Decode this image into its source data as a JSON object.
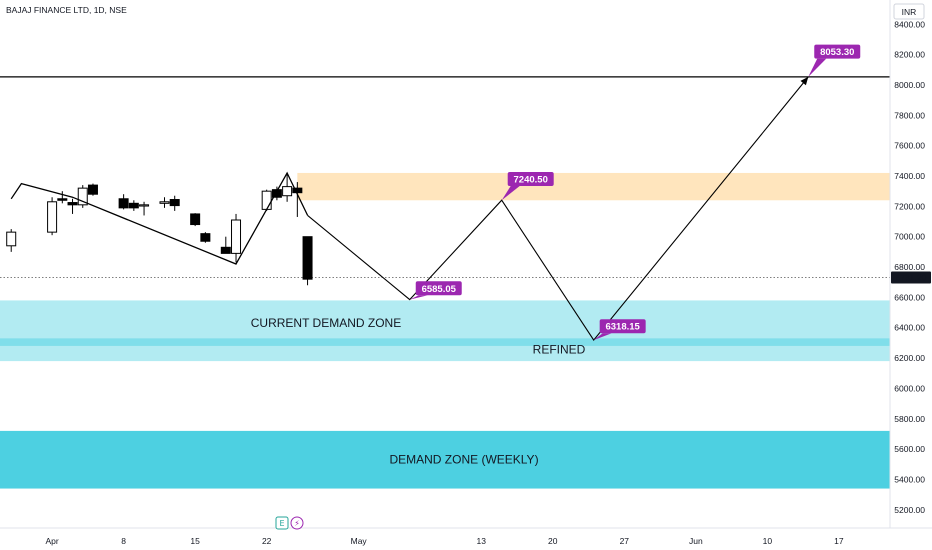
{
  "header": {
    "symbol_title": "BAJAJ FINANCE LTD, 1D, NSE",
    "currency": "INR"
  },
  "colors": {
    "callout": "#9c27b0",
    "supply_zone": "#ffe0b2",
    "demand_zone_light": "#b2ebf2",
    "demand_zone_refined": "#80deea",
    "demand_zone_weekly": "#4dd0e1",
    "candle_up": "#ffffff",
    "candle_down": "#000000",
    "current_price_bg": "#131722"
  },
  "bottom_icons": [
    {
      "icon": "earnings-icon",
      "glyph": "E"
    },
    {
      "icon": "dividend-icon",
      "glyph": "⚡"
    }
  ],
  "chart_data": {
    "type": "candlestick",
    "title": "BAJAJ FINANCE LTD, 1D, NSE",
    "x_ticks": [
      "Apr",
      "8",
      "15",
      "22",
      "May",
      "13",
      "20",
      "27",
      "Jun",
      "10",
      "17"
    ],
    "y_ticks": [
      "8400.00",
      "8200.00",
      "8000.00",
      "7800.00",
      "7600.00",
      "7400.00",
      "7200.00",
      "7000.00",
      "6800.00",
      "6600.00",
      "6400.00",
      "6200.00",
      "6000.00",
      "5800.00",
      "5600.00",
      "5400.00",
      "5200.00"
    ],
    "ylim": [
      5080,
      8560
    ],
    "current_price": {
      "label": "6731.20",
      "value": 6731.2
    },
    "resistance_line": 8053.3,
    "candles": [
      {
        "date": "2024-03-28",
        "open": 6940,
        "high": 7050,
        "low": 6900,
        "close": 7030
      },
      {
        "date": "2024-04-01",
        "open": 7030,
        "high": 7260,
        "low": 7010,
        "close": 7230
      },
      {
        "date": "2024-04-02",
        "open": 7250,
        "high": 7300,
        "low": 7220,
        "close": 7240
      },
      {
        "date": "2024-04-03",
        "open": 7225,
        "high": 7250,
        "low": 7150,
        "close": 7210
      },
      {
        "date": "2024-04-04",
        "open": 7210,
        "high": 7340,
        "low": 7190,
        "close": 7320
      },
      {
        "date": "2024-04-05",
        "open": 7340,
        "high": 7350,
        "low": 7270,
        "close": 7280
      },
      {
        "date": "2024-04-08",
        "open": 7250,
        "high": 7280,
        "low": 7180,
        "close": 7190
      },
      {
        "date": "2024-04-09",
        "open": 7220,
        "high": 7240,
        "low": 7170,
        "close": 7190
      },
      {
        "date": "2024-04-10",
        "open": 7205,
        "high": 7230,
        "low": 7140,
        "close": 7210
      },
      {
        "date": "2024-04-12",
        "open": 7220,
        "high": 7260,
        "low": 7190,
        "close": 7230
      },
      {
        "date": "2024-04-13",
        "open": 7245,
        "high": 7270,
        "low": 7170,
        "close": 7205
      },
      {
        "date": "2024-04-15",
        "open": 7150,
        "high": 7155,
        "low": 7070,
        "close": 7080
      },
      {
        "date": "2024-04-16",
        "open": 7020,
        "high": 7030,
        "low": 6960,
        "close": 6970
      },
      {
        "date": "2024-04-18",
        "open": 6930,
        "high": 7000,
        "low": 6890,
        "close": 6890
      },
      {
        "date": "2024-04-19",
        "open": 6890,
        "high": 7150,
        "low": 6830,
        "close": 7110
      },
      {
        "date": "2024-04-22",
        "open": 7180,
        "high": 7310,
        "low": 7170,
        "close": 7300
      },
      {
        "date": "2024-04-23",
        "open": 7310,
        "high": 7330,
        "low": 7240,
        "close": 7260
      },
      {
        "date": "2024-04-24",
        "open": 7270,
        "high": 7420,
        "low": 7230,
        "close": 7330
      },
      {
        "date": "2024-04-25",
        "open": 7320,
        "high": 7360,
        "low": 7130,
        "close": 7290
      },
      {
        "date": "2024-04-26",
        "open": 7000,
        "high": 7000,
        "low": 6680,
        "close": 6720
      }
    ],
    "price_path": [
      {
        "date": "2024-03-28",
        "value": 7250
      },
      {
        "date": "2024-03-29",
        "value": 7350
      },
      {
        "date": "2024-04-03",
        "value": 7260
      },
      {
        "date": "2024-04-19",
        "value": 6820
      },
      {
        "date": "2024-04-24",
        "value": 7420
      },
      {
        "date": "2024-04-26",
        "value": 7140
      }
    ],
    "projection_path": [
      {
        "date": "2024-04-26",
        "value": 7140
      },
      {
        "date": "2024-05-06",
        "value": 6585.05
      },
      {
        "date": "2024-05-15",
        "value": 7240.5
      },
      {
        "date": "2024-05-24",
        "value": 6318.15
      },
      {
        "date": "2024-06-14",
        "value": 8053.3
      }
    ],
    "price_labels": [
      {
        "label": "6585.05",
        "date": "2024-05-06",
        "value": 6585.05,
        "text_value": 6660
      },
      {
        "label": "7240.50",
        "date": "2024-05-15",
        "value": 7240.5,
        "text_value": 7380
      },
      {
        "label": "6318.15",
        "date": "2024-05-24",
        "value": 6318.15,
        "text_value": 6410
      },
      {
        "label": "8053.30",
        "date": "2024-06-14",
        "value": 8053.3,
        "text_value": 8220
      }
    ],
    "zones": [
      {
        "name": "supply",
        "label": "",
        "from": 7240,
        "to": 7420,
        "start": "2024-04-25"
      },
      {
        "name": "current-demand",
        "label": "CURRENT DEMAND ZONE",
        "from": 6180,
        "to": 6580,
        "label_value": 6430
      },
      {
        "name": "refined",
        "label": "REFINED",
        "from": 6280,
        "to": 6330,
        "label_value": 6255
      },
      {
        "name": "weekly-demand",
        "label": "DEMAND ZONE (WEEKLY)",
        "from": 5340,
        "to": 5720,
        "label_value": 5530
      }
    ]
  }
}
